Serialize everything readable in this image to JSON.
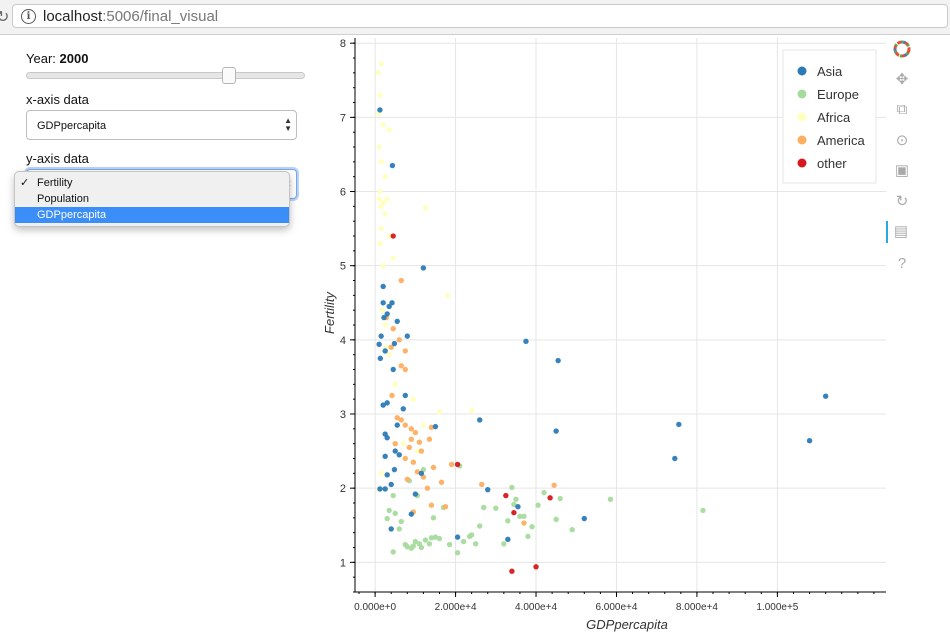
{
  "browser": {
    "url_host": "localhost",
    "url_rest": ":5006/final_visual"
  },
  "controls": {
    "year_label": "Year:",
    "year_value": "2000",
    "slider_fraction": 0.74,
    "x_axis_label": "x-axis data",
    "x_axis_value": "GDPpercapita",
    "y_axis_label": "y-axis data",
    "y_options": [
      {
        "label": "Fertility",
        "checked": true,
        "highlighted": false
      },
      {
        "label": "Population",
        "checked": false,
        "highlighted": false
      },
      {
        "label": "GDPpercapita",
        "checked": false,
        "highlighted": true
      }
    ]
  },
  "colors": {
    "Asia": "#2c7bb6",
    "Europe": "#a6db9d",
    "Africa": "#ffffbf",
    "America": "#fdae61",
    "other": "#d7191c"
  },
  "toolbar": {
    "icons": [
      "bokeh-logo-icon",
      "pan-icon",
      "box-zoom-icon",
      "wheel-zoom-icon",
      "save-icon",
      "reset-icon",
      "hover-icon",
      "help-icon"
    ]
  },
  "chart_data": {
    "type": "scatter",
    "xlabel": "GDPpercapita",
    "ylabel": "Fertility",
    "xlim": [
      -5000,
      127000
    ],
    "ylim": [
      0.6,
      8.07
    ],
    "x_ticks": [
      0,
      20000,
      40000,
      60000,
      80000,
      100000
    ],
    "x_tick_labels": [
      "0.000e+0",
      "2.000e+4",
      "4.000e+4",
      "6.000e+4",
      "8.000e+4",
      "1.000e+5"
    ],
    "y_ticks": [
      1,
      2,
      3,
      4,
      5,
      6,
      7,
      8
    ],
    "y_tick_labels": [
      "1",
      "2",
      "3",
      "4",
      "5",
      "6",
      "7",
      "8"
    ],
    "grid": true,
    "legend_position": "top-right",
    "legend": [
      "Asia",
      "Europe",
      "Africa",
      "America",
      "other"
    ],
    "series": [
      {
        "name": "Asia",
        "points": [
          [
            1200,
            7.1
          ],
          [
            4300,
            6.35
          ],
          [
            12000,
            4.97
          ],
          [
            2000,
            4.72
          ],
          [
            2000,
            4.5
          ],
          [
            3500,
            4.45
          ],
          [
            4200,
            4.5
          ],
          [
            2200,
            4.3
          ],
          [
            3000,
            4.35
          ],
          [
            5500,
            4.25
          ],
          [
            8000,
            4.05
          ],
          [
            1500,
            4.05
          ],
          [
            1000,
            3.94
          ],
          [
            2500,
            3.85
          ],
          [
            4800,
            3.95
          ],
          [
            1300,
            3.75
          ],
          [
            4500,
            3.6
          ],
          [
            7500,
            3.25
          ],
          [
            2000,
            3.12
          ],
          [
            3000,
            3.15
          ],
          [
            7000,
            3.07
          ],
          [
            2500,
            2.73
          ],
          [
            5500,
            2.85
          ],
          [
            3000,
            2.68
          ],
          [
            5000,
            2.5
          ],
          [
            6000,
            2.45
          ],
          [
            2500,
            2.43
          ],
          [
            4800,
            2.25
          ],
          [
            11500,
            2.2
          ],
          [
            3000,
            2.18
          ],
          [
            4000,
            2.05
          ],
          [
            1200,
            1.99
          ],
          [
            2500,
            1.99
          ],
          [
            10000,
            1.92
          ],
          [
            9000,
            1.65
          ],
          [
            4000,
            1.45
          ],
          [
            20500,
            1.34
          ],
          [
            15000,
            2.83
          ],
          [
            26000,
            2.92
          ],
          [
            28000,
            1.98
          ],
          [
            33000,
            1.31
          ],
          [
            35500,
            1.75
          ],
          [
            37500,
            3.98
          ],
          [
            45000,
            2.77
          ],
          [
            45500,
            3.72
          ],
          [
            52000,
            1.59
          ],
          [
            74500,
            2.4
          ],
          [
            75500,
            2.86
          ],
          [
            108000,
            2.64
          ],
          [
            112000,
            3.24
          ]
        ]
      },
      {
        "name": "Europe",
        "points": [
          [
            3500,
            1.7
          ],
          [
            4500,
            1.14
          ],
          [
            6000,
            1.45
          ],
          [
            7500,
            1.24
          ],
          [
            8000,
            1.21
          ],
          [
            9000,
            1.19
          ],
          [
            9500,
            1.22
          ],
          [
            10000,
            1.28
          ],
          [
            10500,
            1.9
          ],
          [
            11000,
            1.25
          ],
          [
            11500,
            1.2
          ],
          [
            12500,
            1.3
          ],
          [
            13500,
            1.25
          ],
          [
            14000,
            1.33
          ],
          [
            15000,
            1.34
          ],
          [
            16000,
            1.32
          ],
          [
            17000,
            1.74
          ],
          [
            18500,
            1.24
          ],
          [
            20500,
            1.13
          ],
          [
            21000,
            2.3
          ],
          [
            22000,
            1.28
          ],
          [
            23500,
            1.35
          ],
          [
            25000,
            1.25
          ],
          [
            26000,
            1.49
          ],
          [
            27000,
            1.74
          ],
          [
            30000,
            1.73
          ],
          [
            32000,
            1.25
          ],
          [
            33000,
            1.56
          ],
          [
            34000,
            2.01
          ],
          [
            35000,
            1.85
          ],
          [
            36000,
            1.62
          ],
          [
            37000,
            1.62
          ],
          [
            38000,
            1.35
          ],
          [
            39000,
            1.48
          ],
          [
            40500,
            1.77
          ],
          [
            42000,
            1.94
          ],
          [
            45000,
            1.58
          ],
          [
            46000,
            1.86
          ],
          [
            49000,
            1.44
          ],
          [
            58500,
            1.85
          ],
          [
            81500,
            1.7
          ],
          [
            3000,
            1.59
          ],
          [
            5000,
            1.66
          ],
          [
            4500,
            1.9
          ],
          [
            8500,
            2.1
          ],
          [
            12000,
            2.25
          ],
          [
            6500,
            1.55
          ],
          [
            14500,
            1.6
          ],
          [
            24000,
            1.37
          ],
          [
            34500,
            1.78
          ]
        ]
      },
      {
        "name": "Africa",
        "points": [
          [
            800,
            7.6
          ],
          [
            1500,
            7.72
          ],
          [
            1200,
            7.3
          ],
          [
            900,
            7.05
          ],
          [
            2000,
            6.9
          ],
          [
            1000,
            6.6
          ],
          [
            1500,
            6.4
          ],
          [
            3500,
            6.83
          ],
          [
            2500,
            6.2
          ],
          [
            1200,
            6.0
          ],
          [
            1000,
            5.9
          ],
          [
            1500,
            5.8
          ],
          [
            2000,
            5.85
          ],
          [
            2500,
            5.7
          ],
          [
            3000,
            5.9
          ],
          [
            1500,
            5.5
          ],
          [
            1200,
            5.3
          ],
          [
            2000,
            5.0
          ],
          [
            12500,
            5.78
          ],
          [
            3500,
            5.4
          ],
          [
            4500,
            5.1
          ],
          [
            18000,
            4.6
          ],
          [
            1800,
            4.4
          ],
          [
            2500,
            4.2
          ],
          [
            2800,
            3.9
          ],
          [
            3500,
            3.8
          ],
          [
            4500,
            3.6
          ],
          [
            5000,
            3.4
          ],
          [
            9500,
            3.2
          ],
          [
            12000,
            2.85
          ],
          [
            16000,
            3.03
          ],
          [
            24000,
            3.05
          ],
          [
            7000,
            2.6
          ],
          [
            10500,
            2.5
          ],
          [
            1500,
            2.2
          ],
          [
            1000,
            1.98
          ]
        ]
      },
      {
        "name": "America",
        "points": [
          [
            6500,
            4.8
          ],
          [
            2800,
            4.3
          ],
          [
            4500,
            4.15
          ],
          [
            6000,
            4.0
          ],
          [
            7500,
            3.85
          ],
          [
            4000,
            3.9
          ],
          [
            6500,
            3.65
          ],
          [
            7500,
            3.6
          ],
          [
            4200,
            3.25
          ],
          [
            5500,
            2.95
          ],
          [
            6500,
            2.92
          ],
          [
            7500,
            2.85
          ],
          [
            9000,
            2.8
          ],
          [
            10000,
            2.75
          ],
          [
            14000,
            2.82
          ],
          [
            9000,
            2.66
          ],
          [
            11000,
            2.62
          ],
          [
            13500,
            2.66
          ],
          [
            8500,
            2.55
          ],
          [
            11500,
            2.5
          ],
          [
            5000,
            2.6
          ],
          [
            7500,
            2.4
          ],
          [
            9500,
            2.35
          ],
          [
            10500,
            2.22
          ],
          [
            12000,
            2.15
          ],
          [
            14500,
            2.28
          ],
          [
            19000,
            2.32
          ],
          [
            8000,
            2.12
          ],
          [
            13000,
            2.0
          ],
          [
            16500,
            2.08
          ],
          [
            26500,
            2.05
          ],
          [
            44500,
            2.04
          ],
          [
            14000,
            1.77
          ],
          [
            17500,
            1.75
          ],
          [
            9500,
            1.68
          ],
          [
            37000,
            1.53
          ]
        ]
      },
      {
        "name": "other",
        "points": [
          [
            4500,
            5.4
          ],
          [
            20500,
            2.32
          ],
          [
            32500,
            1.9
          ],
          [
            43500,
            1.87
          ],
          [
            34500,
            1.67
          ],
          [
            40000,
            0.94
          ],
          [
            34000,
            0.88
          ]
        ]
      }
    ]
  }
}
